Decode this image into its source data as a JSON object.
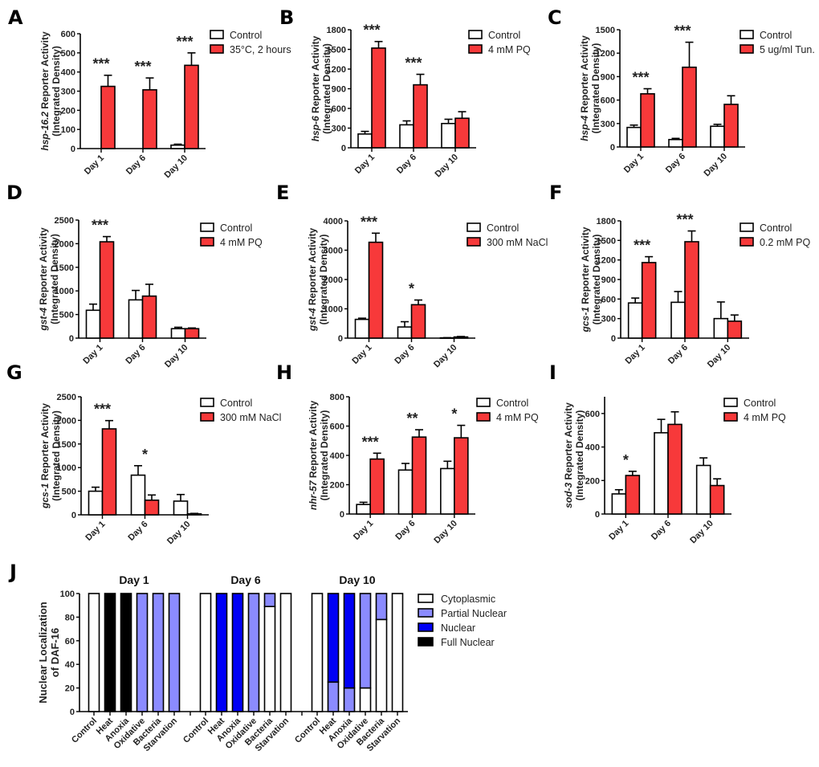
{
  "figure": {
    "colors": {
      "control": "#ffffff",
      "treatment": "#f7393a",
      "cytoplasmic": "#ffffff",
      "partial_nuclear": "#8b8bff",
      "nuclear": "#0000f5",
      "full_nuclear": "#000000",
      "outline": "#000000"
    }
  },
  "chart_data": [
    {
      "panel": "A",
      "type": "bar",
      "ylabel_gene": "hsp-16.2",
      "ylabel_rest": " Reporter Activity",
      "ylabel_line2": "(Integrated Density)",
      "categories": [
        "Day 1",
        "Day 6",
        "Day 10"
      ],
      "ylim": [
        0,
        600
      ],
      "yticks": [
        0,
        100,
        200,
        300,
        400,
        500,
        600
      ],
      "series": [
        {
          "name": "Control",
          "values": [
            0,
            0,
            18
          ],
          "errors": [
            0,
            0,
            5
          ]
        },
        {
          "name": "35°C, 2 hours",
          "values": [
            325,
            307,
            435
          ],
          "errors": [
            58,
            62,
            65
          ]
        }
      ],
      "significance": [
        "***",
        "***",
        "***"
      ]
    },
    {
      "panel": "B",
      "type": "bar",
      "ylabel_gene": "hsp-6",
      "ylabel_rest": " Reporter Activity",
      "ylabel_line2": "(Integrated Density)",
      "categories": [
        "Day 1",
        "Day 6",
        "Day 10"
      ],
      "ylim": [
        0,
        1800
      ],
      "yticks": [
        0,
        300,
        600,
        900,
        1200,
        1500,
        1800
      ],
      "series": [
        {
          "name": "Control",
          "values": [
            210,
            350,
            370
          ],
          "errors": [
            40,
            60,
            65
          ]
        },
        {
          "name": "4 mM PQ",
          "values": [
            1520,
            960,
            450
          ],
          "errors": [
            100,
            160,
            100
          ]
        }
      ],
      "significance": [
        "***",
        "***",
        ""
      ]
    },
    {
      "panel": "C",
      "type": "bar",
      "ylabel_gene": "hsp-4",
      "ylabel_rest": " Reporter Activity",
      "ylabel_line2": "(Integrated Density)",
      "categories": [
        "Day 1",
        "Day 6",
        "Day 10"
      ],
      "ylim": [
        0,
        1500
      ],
      "yticks": [
        0,
        300,
        600,
        900,
        1200,
        1500
      ],
      "series": [
        {
          "name": "Control",
          "values": [
            250,
            95,
            265
          ],
          "errors": [
            30,
            15,
            25
          ]
        },
        {
          "name": "5 ug/ml Tun.",
          "values": [
            680,
            1020,
            545
          ],
          "errors": [
            65,
            320,
            110
          ]
        }
      ],
      "significance": [
        "***",
        "***",
        ""
      ]
    },
    {
      "panel": "D",
      "type": "bar",
      "ylabel_gene": "gst-4",
      "ylabel_rest": " Reporter Activity",
      "ylabel_line2": "(Integrated Density)",
      "categories": [
        "Day 1",
        "Day 6",
        "Day 10"
      ],
      "ylim": [
        0,
        2500
      ],
      "yticks": [
        0,
        500,
        1000,
        1500,
        2000,
        2500
      ],
      "series": [
        {
          "name": "Control",
          "values": [
            590,
            810,
            200
          ],
          "errors": [
            130,
            200,
            30
          ]
        },
        {
          "name": "4 mM PQ",
          "values": [
            2040,
            890,
            200
          ],
          "errors": [
            110,
            250,
            15
          ]
        }
      ],
      "significance": [
        "***",
        "",
        ""
      ]
    },
    {
      "panel": "E",
      "type": "bar",
      "ylabel_gene": "gst-4",
      "ylabel_rest": " Reporter Activity",
      "ylabel_line2": "(Integrated Density)",
      "categories": [
        "Day 1",
        "Day 6",
        "Day 10"
      ],
      "ylim": [
        0,
        4000
      ],
      "yticks": [
        0,
        1000,
        2000,
        3000,
        4000
      ],
      "series": [
        {
          "name": "Control",
          "values": [
            640,
            380,
            10
          ],
          "errors": [
            40,
            180,
            5
          ]
        },
        {
          "name": "300 mM NaCl",
          "values": [
            3270,
            1140,
            40
          ],
          "errors": [
            310,
            160,
            15
          ]
        }
      ],
      "significance": [
        "***",
        "*",
        ""
      ]
    },
    {
      "panel": "F",
      "type": "bar",
      "ylabel_gene": "gcs-1",
      "ylabel_rest": " Reporter Activity",
      "ylabel_line2": "(Integrated Density)",
      "categories": [
        "Day 1",
        "Day 6",
        "Day 10"
      ],
      "ylim": [
        0,
        1800
      ],
      "yticks": [
        0,
        300,
        600,
        900,
        1200,
        1500,
        1800
      ],
      "series": [
        {
          "name": "Control",
          "values": [
            540,
            550,
            300
          ],
          "errors": [
            75,
            165,
            255
          ]
        },
        {
          "name": "0.2 mM PQ",
          "values": [
            1160,
            1480,
            260
          ],
          "errors": [
            90,
            165,
            95
          ]
        }
      ],
      "significance": [
        "***",
        "***",
        ""
      ]
    },
    {
      "panel": "G",
      "type": "bar",
      "ylabel_gene": "gcs-1",
      "ylabel_rest": " Reporter Activity",
      "ylabel_line2": "(Integrated Density)",
      "categories": [
        "Day 1",
        "Day 6",
        "Day 10"
      ],
      "ylim": [
        0,
        2500
      ],
      "yticks": [
        0,
        500,
        1000,
        1500,
        2000,
        2500
      ],
      "series": [
        {
          "name": "Control",
          "values": [
            500,
            840,
            290
          ],
          "errors": [
            85,
            200,
            140
          ]
        },
        {
          "name": "300 mM NaCl",
          "values": [
            1820,
            310,
            20
          ],
          "errors": [
            175,
            110,
            10
          ]
        }
      ],
      "significance": [
        "***",
        "*",
        ""
      ]
    },
    {
      "panel": "H",
      "type": "bar",
      "ylabel_gene": "nhr-57",
      "ylabel_rest": " Reporter Activity",
      "ylabel_line2": "(Integrated Density)",
      "categories": [
        "Day 1",
        "Day 6",
        "Day 10"
      ],
      "ylim": [
        0,
        800
      ],
      "yticks": [
        0,
        200,
        400,
        600,
        800
      ],
      "series": [
        {
          "name": "Control",
          "values": [
            65,
            300,
            310
          ],
          "errors": [
            15,
            45,
            50
          ]
        },
        {
          "name": "4 mM PQ",
          "values": [
            375,
            525,
            520
          ],
          "errors": [
            40,
            50,
            85
          ]
        }
      ],
      "significance": [
        "***",
        "**",
        "*"
      ]
    },
    {
      "panel": "I",
      "type": "bar",
      "ylabel_gene": "sod-3",
      "ylabel_rest": " Reporter Activity",
      "ylabel_line2": "(Integrated Density)",
      "categories": [
        "Day 1",
        "Day 6",
        "Day 10"
      ],
      "ylim": [
        0,
        700
      ],
      "yticks": [
        0,
        200,
        400,
        600
      ],
      "series": [
        {
          "name": "Control",
          "values": [
            120,
            485,
            290
          ],
          "errors": [
            25,
            80,
            45
          ]
        },
        {
          "name": "4 mM PQ",
          "values": [
            230,
            535,
            170
          ],
          "errors": [
            25,
            75,
            40
          ]
        }
      ],
      "significance": [
        "*",
        "",
        ""
      ]
    },
    {
      "panel": "J",
      "type": "bar",
      "stacked": true,
      "ylabel_line1": "Nuclear Localization",
      "ylabel_line2": "of DAF-16",
      "ylim": [
        0,
        100
      ],
      "yticks": [
        0,
        20,
        40,
        60,
        80,
        100
      ],
      "categories": [
        "Control",
        "Heat",
        "Anoxia",
        "Oxidative",
        "Bacteria",
        "Starvation"
      ],
      "legend": [
        "Cytoplasmic",
        "Partial Nuclear",
        "Nuclear",
        "Full Nuclear"
      ],
      "groups": [
        {
          "title": "Day 1",
          "bars": [
            {
              "Cytoplasmic": 100,
              "Partial Nuclear": 0,
              "Nuclear": 0,
              "Full Nuclear": 0
            },
            {
              "Cytoplasmic": 0,
              "Partial Nuclear": 0,
              "Nuclear": 0,
              "Full Nuclear": 100
            },
            {
              "Cytoplasmic": 0,
              "Partial Nuclear": 0,
              "Nuclear": 0,
              "Full Nuclear": 100
            },
            {
              "Cytoplasmic": 0,
              "Partial Nuclear": 100,
              "Nuclear": 0,
              "Full Nuclear": 0
            },
            {
              "Cytoplasmic": 0,
              "Partial Nuclear": 100,
              "Nuclear": 0,
              "Full Nuclear": 0
            },
            {
              "Cytoplasmic": 0,
              "Partial Nuclear": 100,
              "Nuclear": 0,
              "Full Nuclear": 0
            }
          ]
        },
        {
          "title": "Day 6",
          "bars": [
            {
              "Cytoplasmic": 100,
              "Partial Nuclear": 0,
              "Nuclear": 0,
              "Full Nuclear": 0
            },
            {
              "Cytoplasmic": 0,
              "Partial Nuclear": 0,
              "Nuclear": 100,
              "Full Nuclear": 0
            },
            {
              "Cytoplasmic": 0,
              "Partial Nuclear": 0,
              "Nuclear": 100,
              "Full Nuclear": 0
            },
            {
              "Cytoplasmic": 0,
              "Partial Nuclear": 100,
              "Nuclear": 0,
              "Full Nuclear": 0
            },
            {
              "Cytoplasmic": 89,
              "Partial Nuclear": 11,
              "Nuclear": 0,
              "Full Nuclear": 0
            },
            {
              "Cytoplasmic": 100,
              "Partial Nuclear": 0,
              "Nuclear": 0,
              "Full Nuclear": 0
            }
          ]
        },
        {
          "title": "Day 10",
          "bars": [
            {
              "Cytoplasmic": 100,
              "Partial Nuclear": 0,
              "Nuclear": 0,
              "Full Nuclear": 0
            },
            {
              "Cytoplasmic": 0,
              "Partial Nuclear": 25,
              "Nuclear": 75,
              "Full Nuclear": 0
            },
            {
              "Cytoplasmic": 0,
              "Partial Nuclear": 20,
              "Nuclear": 80,
              "Full Nuclear": 0
            },
            {
              "Cytoplasmic": 20,
              "Partial Nuclear": 80,
              "Nuclear": 0,
              "Full Nuclear": 0
            },
            {
              "Cytoplasmic": 78,
              "Partial Nuclear": 22,
              "Nuclear": 0,
              "Full Nuclear": 0
            },
            {
              "Cytoplasmic": 100,
              "Partial Nuclear": 0,
              "Nuclear": 0,
              "Full Nuclear": 0
            }
          ]
        }
      ]
    }
  ]
}
